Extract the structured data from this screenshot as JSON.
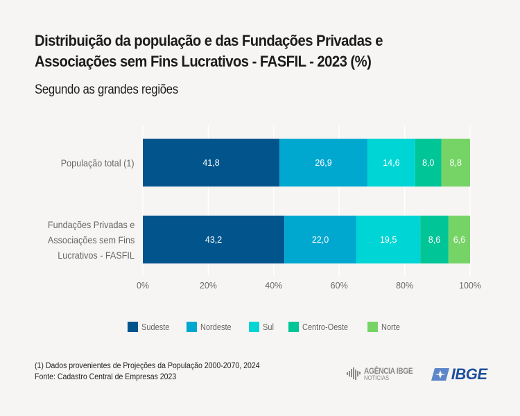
{
  "header": {
    "title_lines": [
      "Distribuição da população e das Fundações Privadas e",
      "Associações sem Fins Lucrativos - FASFIL - 2023 (%)"
    ],
    "subtitle": "Segundo as grandes regiões"
  },
  "chart_data": {
    "type": "bar",
    "orientation": "horizontal",
    "stacked": "percent",
    "title": "Distribuição da população e das Fundações Privadas e Associações sem Fins Lucrativos - FASFIL - 2023 (%)",
    "subtitle": "Segundo as grandes regiões",
    "categories": [
      "População total (1)",
      "Fundações Privadas e Associações sem Fins Lucrativos - FASFIL"
    ],
    "category_label_lines": [
      [
        "População total (1)"
      ],
      [
        "Fundações Privadas e",
        "Associações sem Fins",
        "Lucrativos - FASFIL"
      ]
    ],
    "series": [
      {
        "name": "Sudeste",
        "color": "#02548c",
        "values": [
          41.8,
          43.2
        ],
        "labels": [
          "41,8",
          "43,2"
        ]
      },
      {
        "name": "Nordeste",
        "color": "#00a8d0",
        "values": [
          26.9,
          22.0
        ],
        "labels": [
          "26,9",
          "22,0"
        ]
      },
      {
        "name": "Sul",
        "color": "#00d5d5",
        "values": [
          14.6,
          19.5
        ],
        "labels": [
          "14,6",
          "19,5"
        ]
      },
      {
        "name": "Centro-Oeste",
        "color": "#00c597",
        "values": [
          8.0,
          8.6
        ],
        "labels": [
          "8,0",
          "8,6"
        ]
      },
      {
        "name": "Norte",
        "color": "#76d466",
        "values": [
          8.8,
          6.6
        ],
        "labels": [
          "8,8",
          "6,6"
        ]
      }
    ],
    "xlim": [
      0,
      100
    ],
    "xticks": [
      0,
      20,
      40,
      60,
      80,
      100
    ],
    "xtick_labels": [
      "0%",
      "20%",
      "40%",
      "60%",
      "80%",
      "100%"
    ],
    "xlabel": "",
    "ylabel": "",
    "grid": "vertical",
    "legend": "bottom"
  },
  "footer": {
    "note": "(1) Dados provenientes de Projeções da População 2000-2070, 2024",
    "source": "Fonte:  Cadastro Central de Empresas 2023",
    "agencia_main": "AGÊNCIA IBGE",
    "agencia_sub": "NOTÍCIAS",
    "ibge_logo": "IBGE"
  }
}
